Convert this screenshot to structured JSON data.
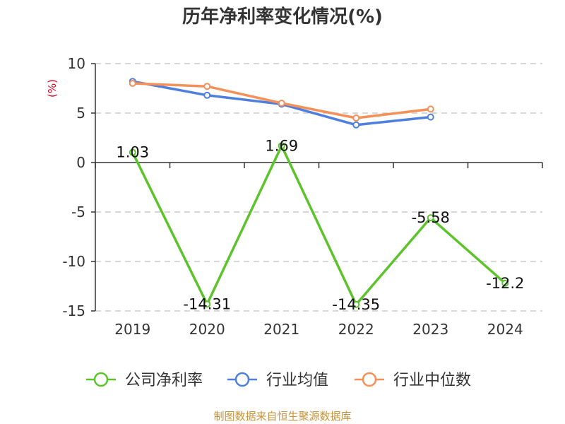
{
  "title": "历年净利率变化情况(%)",
  "source": "制图数据来自恒生聚源数据库",
  "chart_data": {
    "type": "line",
    "title": "历年净利率变化情况(%)",
    "xlabel": "",
    "ylabel": "(%)",
    "categories": [
      "2019",
      "2020",
      "2021",
      "2022",
      "2023",
      "2024"
    ],
    "ylim": [
      -15,
      10
    ],
    "yticks": [
      -15,
      -10,
      -5,
      0,
      5,
      10
    ],
    "grid": true,
    "legend_position": "bottom",
    "series": [
      {
        "name": "公司净利率",
        "color": "#5cc42a",
        "values": [
          1.03,
          -14.31,
          1.69,
          -14.35,
          -5.58,
          -12.2
        ],
        "labels": [
          "1.03",
          "-14.31",
          "1.69",
          "-14.35",
          "-5.58",
          "-12.2"
        ],
        "show_labels": true
      },
      {
        "name": "行业均值",
        "color": "#4d7fde",
        "values": [
          8.2,
          6.8,
          5.9,
          3.8,
          4.6,
          null
        ],
        "show_labels": false
      },
      {
        "name": "行业中位数",
        "color": "#f5905a",
        "values": [
          8.0,
          7.7,
          6.0,
          4.5,
          5.4,
          null
        ],
        "show_labels": false
      }
    ]
  }
}
